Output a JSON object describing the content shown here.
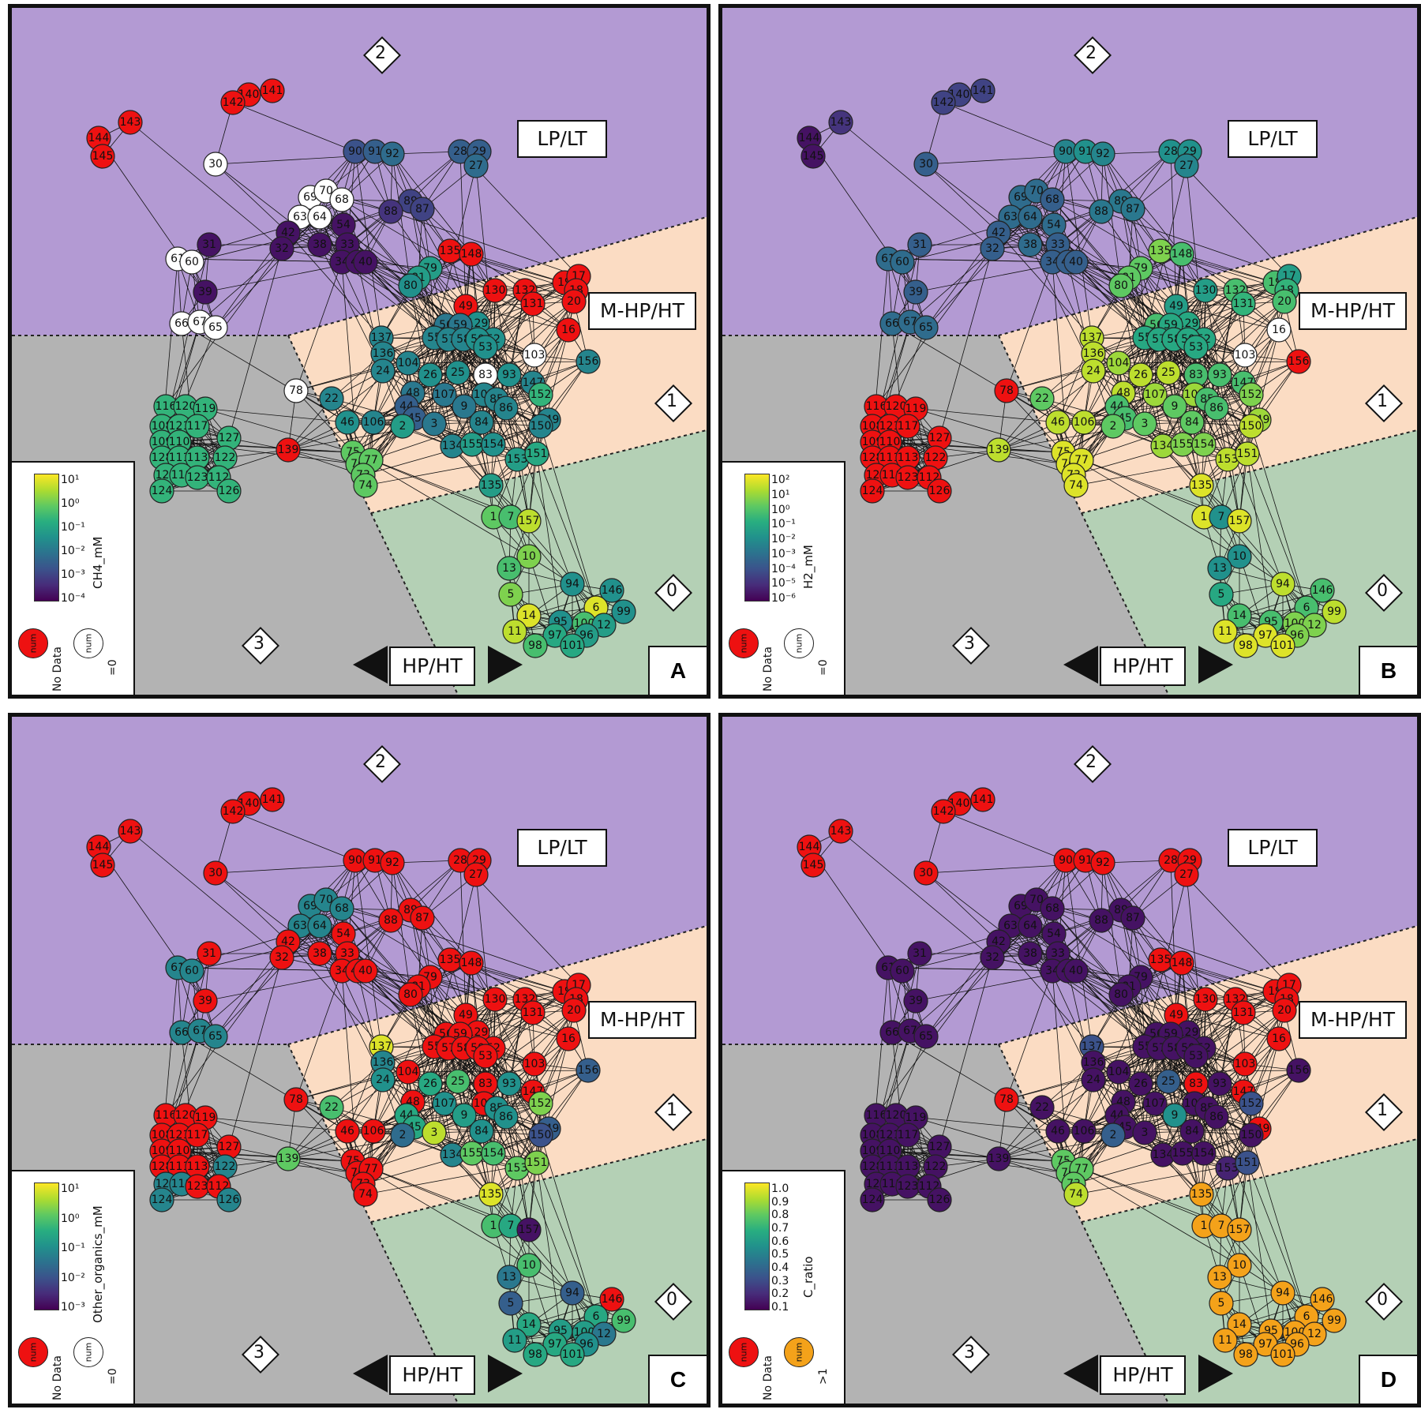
{
  "regions": {
    "lp_lt": "LP/LT",
    "m_hp_ht": "M-HP/HT",
    "hp_ht": "HP/HT",
    "diamond_0": "0",
    "diamond_1": "1",
    "diamond_2": "2",
    "diamond_3": "3"
  },
  "colors": {
    "region_purple": "#b39ad3",
    "region_peach": "#fbdcc3",
    "region_grey": "#b3b3b3",
    "region_green": "#b4d0b5",
    "no_data": "#ee1111",
    "zero": "#ffffff",
    "over_one": "#f4a21a"
  },
  "legend_common": {
    "node_text": "num",
    "no_data_caption": "No Data",
    "zero_caption": "=0",
    "over_one_caption": ">1"
  },
  "network": {
    "nodes": [
      {
        "id": "141",
        "v": [
          -1,
          0.2,
          -1,
          -1
        ]
      },
      {
        "id": "140",
        "v": [
          -1,
          0.2,
          -1,
          -1
        ]
      },
      {
        "id": "142",
        "v": [
          -1,
          0.2,
          -1,
          -1
        ]
      },
      {
        "id": "143",
        "v": [
          -1,
          0.15,
          -1,
          -1
        ]
      },
      {
        "id": "144",
        "v": [
          -1,
          0.05,
          -1,
          -1
        ]
      },
      {
        "id": "145",
        "v": [
          -1,
          0.05,
          -1,
          -1
        ]
      },
      {
        "id": "30",
        "v": [
          -2,
          0.3,
          -1,
          -1
        ]
      },
      {
        "id": "90",
        "v": [
          0.25,
          0.45,
          -1,
          -1
        ]
      },
      {
        "id": "91",
        "v": [
          0.3,
          0.5,
          -1,
          -1
        ]
      },
      {
        "id": "92",
        "v": [
          0.35,
          0.45,
          -1,
          -1
        ]
      },
      {
        "id": "28",
        "v": [
          0.3,
          0.5,
          -1,
          -1
        ]
      },
      {
        "id": "29",
        "v": [
          0.3,
          0.5,
          -1,
          -1
        ]
      },
      {
        "id": "27",
        "v": [
          0.35,
          0.45,
          -1,
          -1
        ]
      },
      {
        "id": "69",
        "v": [
          -2,
          0.35,
          0.45,
          0.05
        ]
      },
      {
        "id": "70",
        "v": [
          -2,
          0.35,
          0.45,
          0.05
        ]
      },
      {
        "id": "68",
        "v": [
          -2,
          0.3,
          0.45,
          0.05
        ]
      },
      {
        "id": "63",
        "v": [
          -2,
          0.35,
          0.45,
          0.05
        ]
      },
      {
        "id": "64",
        "v": [
          -2,
          0.35,
          0.45,
          0.05
        ]
      },
      {
        "id": "89",
        "v": [
          0.2,
          0.4,
          -1,
          0.05
        ]
      },
      {
        "id": "87",
        "v": [
          0.2,
          0.4,
          -1,
          0.05
        ]
      },
      {
        "id": "88",
        "v": [
          0.15,
          0.4,
          -1,
          0.05
        ]
      },
      {
        "id": "54",
        "v": [
          0.05,
          0.35,
          -1,
          0.05
        ]
      },
      {
        "id": "42",
        "v": [
          0.05,
          0.3,
          -1,
          0.05
        ]
      },
      {
        "id": "32",
        "v": [
          0.05,
          0.3,
          -1,
          0.05
        ]
      },
      {
        "id": "38",
        "v": [
          0.05,
          0.35,
          -1,
          0.05
        ]
      },
      {
        "id": "33",
        "v": [
          0.05,
          0.3,
          -1,
          0.05
        ]
      },
      {
        "id": "34",
        "v": [
          0.05,
          0.3,
          -1,
          0.05
        ]
      },
      {
        "id": "41",
        "v": [
          0.05,
          0.3,
          -1,
          0.05
        ]
      },
      {
        "id": "40",
        "v": [
          0.05,
          0.3,
          -1,
          0.05
        ]
      },
      {
        "id": "31",
        "v": [
          0.05,
          0.3,
          -1,
          0.05
        ]
      },
      {
        "id": "61",
        "v": [
          -2,
          0.35,
          0.45,
          0.05
        ]
      },
      {
        "id": "60",
        "v": [
          -2,
          0.35,
          0.45,
          0.05
        ]
      },
      {
        "id": "39",
        "v": [
          0.05,
          0.3,
          -1,
          0.05
        ]
      },
      {
        "id": "66",
        "v": [
          -2,
          0.35,
          0.45,
          0.05
        ]
      },
      {
        "id": "67",
        "v": [
          -2,
          0.35,
          0.45,
          0.05
        ]
      },
      {
        "id": "65",
        "v": [
          -2,
          0.35,
          0.45,
          0.05
        ]
      },
      {
        "id": "135",
        "v": [
          -1,
          0.8,
          -1,
          -1
        ]
      },
      {
        "id": "148",
        "v": [
          -1,
          0.7,
          -1,
          -1
        ]
      },
      {
        "id": "79",
        "v": [
          0.55,
          0.75,
          -1,
          0.05
        ]
      },
      {
        "id": "81",
        "v": [
          0.55,
          0.75,
          -1,
          0.05
        ]
      },
      {
        "id": "80",
        "v": [
          0.5,
          0.75,
          -1,
          0.05
        ]
      },
      {
        "id": "130",
        "v": [
          -1,
          0.55,
          -1,
          -1
        ]
      },
      {
        "id": "49",
        "v": [
          -1,
          0.55,
          -1,
          -1
        ]
      },
      {
        "id": "132",
        "v": [
          -1,
          0.7,
          -1,
          -1
        ]
      },
      {
        "id": "131",
        "v": [
          -1,
          0.65,
          -1,
          -1
        ]
      },
      {
        "id": "19",
        "v": [
          -1,
          0.7,
          -1,
          -1
        ]
      },
      {
        "id": "17",
        "v": [
          -1,
          0.55,
          -1,
          -1
        ]
      },
      {
        "id": "18",
        "v": [
          -1,
          0.65,
          -1,
          -1
        ]
      },
      {
        "id": "20",
        "v": [
          -1,
          0.7,
          -1,
          -1
        ]
      },
      {
        "id": "16",
        "v": [
          -1,
          -2,
          -1,
          -1
        ]
      },
      {
        "id": "129",
        "v": [
          0.5,
          0.6,
          -1,
          0.05
        ]
      },
      {
        "id": "56",
        "v": [
          0.4,
          0.7,
          -1,
          0.05
        ]
      },
      {
        "id": "59",
        "v": [
          0.4,
          0.6,
          -1,
          0.05
        ]
      },
      {
        "id": "55",
        "v": [
          0.45,
          0.6,
          -1,
          0.05
        ]
      },
      {
        "id": "57",
        "v": [
          0.45,
          0.6,
          -1,
          0.05
        ]
      },
      {
        "id": "58",
        "v": [
          0.45,
          0.6,
          -1,
          0.05
        ]
      },
      {
        "id": "52",
        "v": [
          0.5,
          0.6,
          -1,
          0.05
        ]
      },
      {
        "id": "50",
        "v": [
          0.5,
          0.6,
          -1,
          0.05
        ]
      },
      {
        "id": "53",
        "v": [
          0.5,
          0.6,
          -1,
          0.05
        ]
      },
      {
        "id": "137",
        "v": [
          0.45,
          0.9,
          0.95,
          0.25
        ]
      },
      {
        "id": "136",
        "v": [
          0.45,
          0.9,
          0.45,
          0.05
        ]
      },
      {
        "id": "24",
        "v": [
          0.45,
          0.9,
          0.5,
          0.05
        ]
      },
      {
        "id": "103",
        "v": [
          -2,
          -2,
          -1,
          -1
        ]
      },
      {
        "id": "156",
        "v": [
          0.45,
          -1,
          0.3,
          0.05
        ]
      },
      {
        "id": "104",
        "v": [
          0.45,
          0.85,
          -1,
          0.05
        ]
      },
      {
        "id": "26",
        "v": [
          0.5,
          0.9,
          0.6,
          0.05
        ]
      },
      {
        "id": "25",
        "v": [
          0.5,
          0.9,
          0.7,
          0.3
        ]
      },
      {
        "id": "83",
        "v": [
          -2,
          0.7,
          -1,
          -1
        ]
      },
      {
        "id": "93",
        "v": [
          0.5,
          0.7,
          0.5,
          0.05
        ]
      },
      {
        "id": "147",
        "v": [
          0.45,
          0.7,
          -1,
          -1
        ]
      },
      {
        "id": "48",
        "v": [
          0.4,
          0.9,
          -1,
          0.05
        ]
      },
      {
        "id": "107",
        "v": [
          0.4,
          0.85,
          0.5,
          0.05
        ]
      },
      {
        "id": "105",
        "v": [
          0.45,
          0.85,
          -1,
          0.05
        ]
      },
      {
        "id": "85",
        "v": [
          0.45,
          0.7,
          0.5,
          0.05
        ]
      },
      {
        "id": "86",
        "v": [
          0.45,
          0.7,
          0.5,
          0.05
        ]
      },
      {
        "id": "152",
        "v": [
          0.65,
          0.8,
          0.8,
          0.25
        ]
      },
      {
        "id": "78",
        "v": [
          -2,
          -1,
          -1,
          -1
        ]
      },
      {
        "id": "22",
        "v": [
          0.45,
          0.75,
          0.7,
          0.05
        ]
      },
      {
        "id": "44",
        "v": [
          0.3,
          0.7,
          0.6,
          0.05
        ]
      },
      {
        "id": "45",
        "v": [
          0.3,
          0.7,
          0.6,
          0.05
        ]
      },
      {
        "id": "9",
        "v": [
          0.4,
          0.75,
          0.55,
          0.5
        ]
      },
      {
        "id": "46",
        "v": [
          0.5,
          0.9,
          -1,
          0.05
        ]
      },
      {
        "id": "106",
        "v": [
          0.45,
          0.9,
          -1,
          0.05
        ]
      },
      {
        "id": "2",
        "v": [
          0.55,
          0.75,
          0.35,
          0.3
        ]
      },
      {
        "id": "3",
        "v": [
          0.4,
          0.75,
          0.9,
          0.05
        ]
      },
      {
        "id": "84",
        "v": [
          0.45,
          0.75,
          0.5,
          0.05
        ]
      },
      {
        "id": "149",
        "v": [
          0.45,
          0.85,
          0.3,
          -1
        ]
      },
      {
        "id": "150",
        "v": [
          0.45,
          0.9,
          0.25,
          0.05
        ]
      },
      {
        "id": "134",
        "v": [
          0.45,
          0.85,
          0.45,
          0.05
        ]
      },
      {
        "id": "155",
        "v": [
          0.55,
          0.8,
          0.75,
          0.05
        ]
      },
      {
        "id": "154",
        "v": [
          0.5,
          0.8,
          0.7,
          0.05
        ]
      },
      {
        "id": "153",
        "v": [
          0.55,
          0.9,
          0.75,
          0.1
        ]
      },
      {
        "id": "151",
        "v": [
          0.6,
          0.9,
          0.8,
          0.25
        ]
      },
      {
        "id": "116",
        "v": [
          0.65,
          -1,
          -1,
          0.05
        ]
      },
      {
        "id": "120",
        "v": [
          0.65,
          -1,
          -1,
          0.05
        ]
      },
      {
        "id": "119",
        "v": [
          0.65,
          -1,
          -1,
          0.05
        ]
      },
      {
        "id": "108",
        "v": [
          0.65,
          -1,
          -1,
          0.05
        ]
      },
      {
        "id": "121",
        "v": [
          0.65,
          -1,
          -1,
          0.05
        ]
      },
      {
        "id": "117",
        "v": [
          0.65,
          -1,
          -1,
          0.05
        ]
      },
      {
        "id": "109",
        "v": [
          0.65,
          -1,
          -1,
          0.05
        ]
      },
      {
        "id": "110",
        "v": [
          0.65,
          -1,
          -1,
          0.05
        ]
      },
      {
        "id": "127",
        "v": [
          0.65,
          -1,
          -1,
          0.05
        ]
      },
      {
        "id": "128",
        "v": [
          0.65,
          -1,
          -1,
          0.05
        ]
      },
      {
        "id": "111",
        "v": [
          0.65,
          -1,
          -1,
          0.05
        ]
      },
      {
        "id": "113",
        "v": [
          0.65,
          -1,
          -1,
          0.05
        ]
      },
      {
        "id": "122",
        "v": [
          0.65,
          -1,
          0.45,
          0.05
        ]
      },
      {
        "id": "125",
        "v": [
          0.65,
          -1,
          0.45,
          0.05
        ]
      },
      {
        "id": "118",
        "v": [
          0.65,
          -1,
          0.45,
          0.05
        ]
      },
      {
        "id": "123",
        "v": [
          0.65,
          -1,
          -1,
          0.05
        ]
      },
      {
        "id": "124",
        "v": [
          0.65,
          -1,
          0.45,
          0.05
        ]
      },
      {
        "id": "112",
        "v": [
          0.65,
          -1,
          -1,
          0.05
        ]
      },
      {
        "id": "126",
        "v": [
          0.65,
          -1,
          0.45,
          0.05
        ]
      },
      {
        "id": "139",
        "v": [
          -1,
          0.9,
          0.75,
          0.05
        ]
      },
      {
        "id": "75",
        "v": [
          0.75,
          0.95,
          -1,
          0.75
        ]
      },
      {
        "id": "76",
        "v": [
          0.75,
          0.95,
          -1,
          0.75
        ]
      },
      {
        "id": "77",
        "v": [
          0.75,
          0.95,
          -1,
          0.75
        ]
      },
      {
        "id": "73",
        "v": [
          0.75,
          0.95,
          -1,
          0.75
        ]
      },
      {
        "id": "74",
        "v": [
          0.75,
          0.95,
          -1,
          0.9
        ]
      },
      {
        "id": "135b",
        "label": "135",
        "v": [
          0.55,
          0.95,
          0.95,
          2
        ]
      },
      {
        "id": "1",
        "v": [
          0.75,
          0.95,
          0.7,
          2
        ]
      },
      {
        "id": "7",
        "v": [
          0.7,
          0.5,
          0.6,
          2
        ]
      },
      {
        "id": "157",
        "v": [
          0.9,
          0.95,
          0.05,
          2
        ]
      },
      {
        "id": "10",
        "v": [
          0.8,
          0.5,
          0.7,
          2
        ]
      },
      {
        "id": "13",
        "v": [
          0.7,
          0.5,
          0.4,
          2
        ]
      },
      {
        "id": "94",
        "v": [
          0.5,
          0.9,
          0.3,
          2
        ]
      },
      {
        "id": "146b",
        "label": "146",
        "v": [
          0.5,
          0.7,
          -1,
          2
        ]
      },
      {
        "id": "5",
        "v": [
          0.8,
          0.6,
          0.3,
          2
        ]
      },
      {
        "id": "14",
        "v": [
          0.95,
          0.7,
          0.6,
          2
        ]
      },
      {
        "id": "6",
        "v": [
          0.95,
          0.7,
          0.6,
          2
        ]
      },
      {
        "id": "99",
        "v": [
          0.5,
          0.9,
          0.7,
          2
        ]
      },
      {
        "id": "95",
        "v": [
          0.5,
          0.7,
          0.55,
          2
        ]
      },
      {
        "id": "100",
        "v": [
          0.7,
          0.8,
          0.55,
          2
        ]
      },
      {
        "id": "12",
        "v": [
          0.55,
          0.8,
          0.4,
          2
        ]
      },
      {
        "id": "11",
        "v": [
          0.9,
          0.95,
          0.55,
          2
        ]
      },
      {
        "id": "97",
        "v": [
          0.6,
          0.95,
          0.6,
          2
        ]
      },
      {
        "id": "96",
        "v": [
          0.55,
          0.8,
          0.5,
          2
        ]
      },
      {
        "id": "98",
        "v": [
          0.7,
          0.95,
          0.6,
          2
        ]
      },
      {
        "id": "101",
        "v": [
          0.6,
          0.95,
          0.6,
          2
        ]
      }
    ]
  },
  "panels": [
    {
      "letter": "A",
      "colorbar_title": "CH4_mM",
      "ticks": [
        "10¹",
        "10⁰",
        "10⁻¹",
        "10⁻²",
        "10⁻³",
        "10⁻⁴"
      ],
      "third_node": "zero"
    },
    {
      "letter": "B",
      "colorbar_title": "H2_mM",
      "ticks": [
        "10²",
        "10¹",
        "10⁰",
        "10⁻¹",
        "10⁻²",
        "10⁻³",
        "10⁻⁴",
        "10⁻⁵",
        "10⁻⁶"
      ],
      "third_node": "zero"
    },
    {
      "letter": "C",
      "colorbar_title": "Other_organics_mM",
      "ticks": [
        "10¹",
        "10⁰",
        "10⁻¹",
        "10⁻²",
        "10⁻³"
      ],
      "third_node": "zero"
    },
    {
      "letter": "D",
      "colorbar_title": "C_ratio",
      "ticks": [
        "1.0",
        "0.9",
        "0.8",
        "0.7",
        "0.6",
        "0.5",
        "0.4",
        "0.3",
        "0.2",
        "0.1"
      ],
      "third_node": "over_one"
    }
  ]
}
